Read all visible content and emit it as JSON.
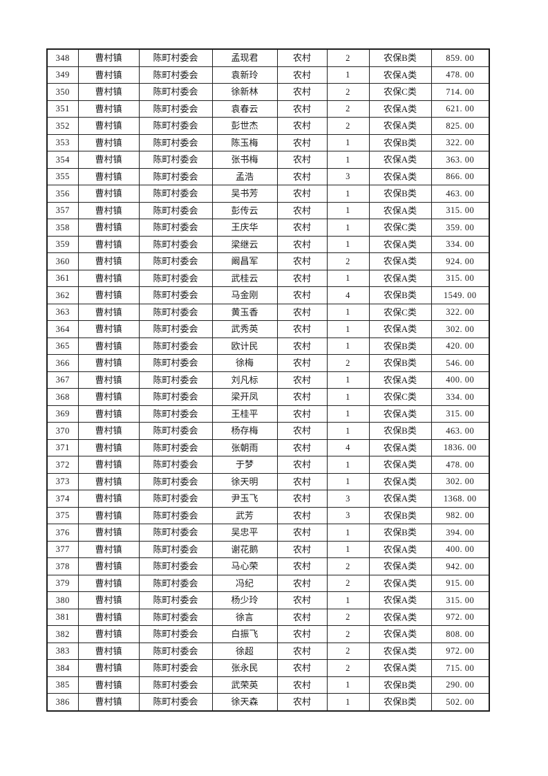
{
  "page": {
    "kind": "printed pension roster sheet",
    "background_color": "#ffffff",
    "border_color": "#1c1c1c",
    "text_color": "#1a1a1a"
  },
  "table": {
    "column_names": [
      "row-number",
      "town",
      "village-committee",
      "person-name",
      "household-type",
      "person-count",
      "insurance-category",
      "amount"
    ],
    "rows": [
      [
        "348",
        "曹村镇",
        "陈町村委会",
        "孟现君",
        "农村",
        "2",
        "农保B类",
        "859. 00"
      ],
      [
        "349",
        "曹村镇",
        "陈町村委会",
        "袁新玲",
        "农村",
        "1",
        "农保A类",
        "478. 00"
      ],
      [
        "350",
        "曹村镇",
        "陈町村委会",
        "徐新林",
        "农村",
        "2",
        "农保C类",
        "714. 00"
      ],
      [
        "351",
        "曹村镇",
        "陈町村委会",
        "袁春云",
        "农村",
        "2",
        "农保A类",
        "621. 00"
      ],
      [
        "352",
        "曹村镇",
        "陈町村委会",
        "彭世杰",
        "农村",
        "2",
        "农保A类",
        "825. 00"
      ],
      [
        "353",
        "曹村镇",
        "陈町村委会",
        "陈玉梅",
        "农村",
        "1",
        "农保B类",
        "322. 00"
      ],
      [
        "354",
        "曹村镇",
        "陈町村委会",
        "张书梅",
        "农村",
        "1",
        "农保A类",
        "363. 00"
      ],
      [
        "355",
        "曹村镇",
        "陈町村委会",
        "孟浩",
        "农村",
        "3",
        "农保A类",
        "866. 00"
      ],
      [
        "356",
        "曹村镇",
        "陈町村委会",
        "吴书芳",
        "农村",
        "1",
        "农保B类",
        "463. 00"
      ],
      [
        "357",
        "曹村镇",
        "陈町村委会",
        "彭传云",
        "农村",
        "1",
        "农保A类",
        "315. 00"
      ],
      [
        "358",
        "曹村镇",
        "陈町村委会",
        "王庆华",
        "农村",
        "1",
        "农保C类",
        "359. 00"
      ],
      [
        "359",
        "曹村镇",
        "陈町村委会",
        "梁继云",
        "农村",
        "1",
        "农保A类",
        "334. 00"
      ],
      [
        "360",
        "曹村镇",
        "陈町村委会",
        "阚昌军",
        "农村",
        "2",
        "农保A类",
        "924. 00"
      ],
      [
        "361",
        "曹村镇",
        "陈町村委会",
        "武桂云",
        "农村",
        "1",
        "农保A类",
        "315. 00"
      ],
      [
        "362",
        "曹村镇",
        "陈町村委会",
        "马金刚",
        "农村",
        "4",
        "农保B类",
        "1549. 00"
      ],
      [
        "363",
        "曹村镇",
        "陈町村委会",
        "黄玉香",
        "农村",
        "1",
        "农保C类",
        "322. 00"
      ],
      [
        "364",
        "曹村镇",
        "陈町村委会",
        "武秀英",
        "农村",
        "1",
        "农保A类",
        "302. 00"
      ],
      [
        "365",
        "曹村镇",
        "陈町村委会",
        "欧计民",
        "农村",
        "1",
        "农保B类",
        "420. 00"
      ],
      [
        "366",
        "曹村镇",
        "陈町村委会",
        "徐梅",
        "农村",
        "2",
        "农保B类",
        "546. 00"
      ],
      [
        "367",
        "曹村镇",
        "陈町村委会",
        "刘凡标",
        "农村",
        "1",
        "农保A类",
        "400. 00"
      ],
      [
        "368",
        "曹村镇",
        "陈町村委会",
        "梁开凤",
        "农村",
        "1",
        "农保C类",
        "334. 00"
      ],
      [
        "369",
        "曹村镇",
        "陈町村委会",
        "王桂平",
        "农村",
        "1",
        "农保A类",
        "315. 00"
      ],
      [
        "370",
        "曹村镇",
        "陈町村委会",
        "杨存梅",
        "农村",
        "1",
        "农保B类",
        "463. 00"
      ],
      [
        "371",
        "曹村镇",
        "陈町村委会",
        "张朝雨",
        "农村",
        "4",
        "农保A类",
        "1836. 00"
      ],
      [
        "372",
        "曹村镇",
        "陈町村委会",
        "于梦",
        "农村",
        "1",
        "农保A类",
        "478. 00"
      ],
      [
        "373",
        "曹村镇",
        "陈町村委会",
        "徐天明",
        "农村",
        "1",
        "农保A类",
        "302. 00"
      ],
      [
        "374",
        "曹村镇",
        "陈町村委会",
        "尹玉飞",
        "农村",
        "3",
        "农保A类",
        "1368. 00"
      ],
      [
        "375",
        "曹村镇",
        "陈町村委会",
        "武芳",
        "农村",
        "3",
        "农保B类",
        "982. 00"
      ],
      [
        "376",
        "曹村镇",
        "陈町村委会",
        "吴忠平",
        "农村",
        "1",
        "农保B类",
        "394. 00"
      ],
      [
        "377",
        "曹村镇",
        "陈町村委会",
        "谢花鹅",
        "农村",
        "1",
        "农保A类",
        "400. 00"
      ],
      [
        "378",
        "曹村镇",
        "陈町村委会",
        "马心荣",
        "农村",
        "2",
        "农保A类",
        "942. 00"
      ],
      [
        "379",
        "曹村镇",
        "陈町村委会",
        "冯纪",
        "农村",
        "2",
        "农保A类",
        "915. 00"
      ],
      [
        "380",
        "曹村镇",
        "陈町村委会",
        "杨少玲",
        "农村",
        "1",
        "农保A类",
        "315. 00"
      ],
      [
        "381",
        "曹村镇",
        "陈町村委会",
        "徐言",
        "农村",
        "2",
        "农保A类",
        "972. 00"
      ],
      [
        "382",
        "曹村镇",
        "陈町村委会",
        "白振飞",
        "农村",
        "2",
        "农保A类",
        "808. 00"
      ],
      [
        "383",
        "曹村镇",
        "陈町村委会",
        "徐超",
        "农村",
        "2",
        "农保A类",
        "972. 00"
      ],
      [
        "384",
        "曹村镇",
        "陈町村委会",
        "张永民",
        "农村",
        "2",
        "农保A类",
        "715. 00"
      ],
      [
        "385",
        "曹村镇",
        "陈町村委会",
        "武荣英",
        "农村",
        "1",
        "农保B类",
        "290. 00"
      ],
      [
        "386",
        "曹村镇",
        "陈町村委会",
        "徐天森",
        "农村",
        "1",
        "农保B类",
        "502. 00"
      ]
    ]
  }
}
